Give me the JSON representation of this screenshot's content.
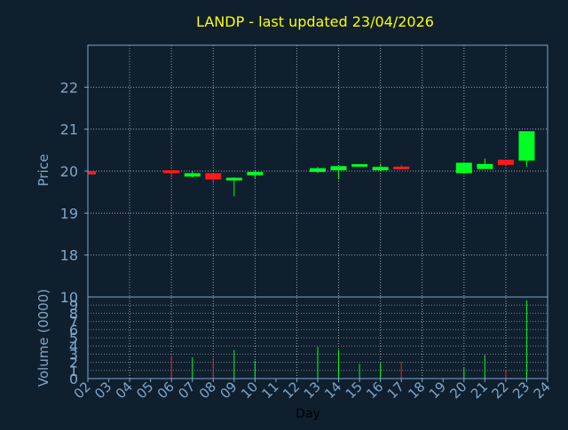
{
  "chart_data": {
    "type": "candlestick",
    "title": "LANDP - last updated 23/04/2026",
    "xlabel": "Day",
    "price": {
      "ylabel": "Price",
      "ylim": [
        17,
        23
      ],
      "yticks": [
        18,
        19,
        20,
        21,
        22
      ],
      "grid": true
    },
    "volume": {
      "ylabel": "Volume (0000)",
      "ylim": [
        0,
        10
      ],
      "yticks": [
        0,
        1,
        2,
        3,
        4,
        5,
        6,
        7,
        8,
        9,
        10
      ],
      "tick_labels": [
        "0",
        "1",
        "2",
        "3",
        "4",
        "5",
        "6",
        "7",
        "8",
        "9",
        "10"
      ],
      "grid": true
    },
    "x_ticks": [
      "02",
      "03",
      "04",
      "05",
      "06",
      "07",
      "08",
      "09",
      "10",
      "11",
      "12",
      "13",
      "14",
      "15",
      "16",
      "17",
      "18",
      "19",
      "20",
      "21",
      "22",
      "23",
      "24"
    ],
    "candles": [
      {
        "day": "02",
        "open": 20.0,
        "close": 19.92,
        "high": 20.0,
        "low": 19.92,
        "volume": 0
      },
      {
        "day": "06",
        "open": 20.02,
        "close": 19.95,
        "high": 20.02,
        "low": 19.85,
        "volume": 2.8
      },
      {
        "day": "07",
        "open": 19.87,
        "close": 19.95,
        "high": 19.99,
        "low": 19.85,
        "volume": 2.6
      },
      {
        "day": "08",
        "open": 19.95,
        "close": 19.8,
        "high": 19.95,
        "low": 19.72,
        "volume": 2.5
      },
      {
        "day": "09",
        "open": 19.8,
        "close": 19.82,
        "high": 19.85,
        "low": 19.4,
        "volume": 3.5
      },
      {
        "day": "10",
        "open": 19.9,
        "close": 19.98,
        "high": 20.0,
        "low": 19.82,
        "volume": 2.2
      },
      {
        "day": "13",
        "open": 19.98,
        "close": 20.07,
        "high": 20.1,
        "low": 19.95,
        "volume": 3.9
      },
      {
        "day": "14",
        "open": 20.02,
        "close": 20.12,
        "high": 20.12,
        "low": 19.8,
        "volume": 3.5
      },
      {
        "day": "15",
        "open": 20.12,
        "close": 20.15,
        "high": 20.17,
        "low": 20.1,
        "volume": 1.8
      },
      {
        "day": "16",
        "open": 20.02,
        "close": 20.1,
        "high": 20.17,
        "low": 20.0,
        "volume": 1.9
      },
      {
        "day": "17",
        "open": 20.1,
        "close": 20.05,
        "high": 20.15,
        "low": 20.05,
        "volume": 2.1
      },
      {
        "day": "20",
        "open": 19.95,
        "close": 20.2,
        "high": 20.2,
        "low": 19.95,
        "volume": 1.3
      },
      {
        "day": "21",
        "open": 20.05,
        "close": 20.17,
        "high": 20.3,
        "low": 20.05,
        "volume": 2.9
      },
      {
        "day": "22",
        "open": 20.27,
        "close": 20.15,
        "high": 20.27,
        "low": 20.15,
        "volume": 1.1
      },
      {
        "day": "23",
        "open": 20.25,
        "close": 20.95,
        "high": 20.95,
        "low": 20.1,
        "volume": 9.6
      }
    ],
    "colors": {
      "background": "#0f1f2e",
      "title": "#ffff00",
      "axis_text": "#7fa6c9",
      "xlabel": "#000000",
      "frame": "#7fa6c9",
      "grid": "#c8d4e0",
      "up": "#00ff22",
      "down": "#ff1a1a"
    }
  }
}
